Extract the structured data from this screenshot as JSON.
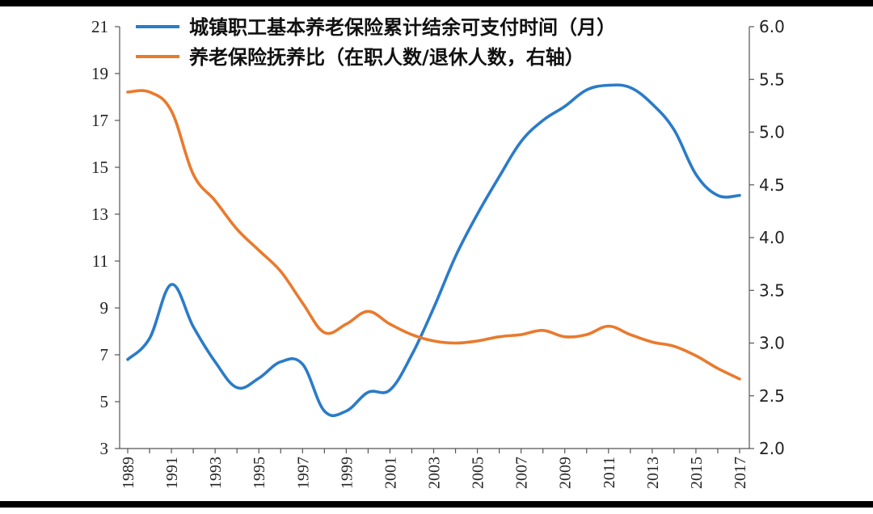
{
  "chart_data": {
    "type": "line",
    "x": [
      1989,
      1990,
      1991,
      1992,
      1993,
      1994,
      1995,
      1996,
      1997,
      1998,
      1999,
      2000,
      2001,
      2002,
      2003,
      2004,
      2005,
      2006,
      2007,
      2008,
      2009,
      2010,
      2011,
      2012,
      2013,
      2014,
      2015,
      2016,
      2017
    ],
    "x_tick_labels": [
      "1989",
      "1991",
      "1993",
      "1995",
      "1997",
      "1999",
      "2001",
      "2003",
      "2005",
      "2007",
      "2009",
      "2011",
      "2013",
      "2015",
      "2017"
    ],
    "y_left_ticks": [
      "3",
      "5",
      "7",
      "9",
      "11",
      "13",
      "15",
      "17",
      "19",
      "21"
    ],
    "y_right_ticks": [
      "2.0",
      "2.5",
      "3.0",
      "3.5",
      "4.0",
      "4.5",
      "5.0",
      "5.5",
      "6.0"
    ],
    "ylim_left": [
      3,
      21
    ],
    "ylim_right": [
      2.0,
      6.0
    ],
    "legend_position": "top-right",
    "series": [
      {
        "name": "城镇职工基本养老保险累计结余可支付时间（月）",
        "axis": "left",
        "color": "#2b7bc8",
        "values": [
          6.8,
          7.7,
          10.0,
          8.2,
          6.7,
          5.6,
          6.0,
          6.7,
          6.6,
          4.6,
          4.6,
          5.4,
          5.5,
          7.0,
          9.0,
          11.2,
          13.0,
          14.6,
          16.1,
          17.0,
          17.6,
          18.3,
          18.5,
          18.4,
          17.7,
          16.6,
          14.7,
          13.8,
          13.8
        ]
      },
      {
        "name": "养老保险抚养比（在职人数/退休人数，右轴）",
        "axis": "right",
        "color": "#e97a2c",
        "values": [
          5.38,
          5.38,
          5.2,
          4.6,
          4.35,
          4.08,
          3.88,
          3.68,
          3.38,
          3.1,
          3.18,
          3.3,
          3.18,
          3.08,
          3.02,
          3.0,
          3.02,
          3.06,
          3.08,
          3.12,
          3.06,
          3.08,
          3.16,
          3.08,
          3.01,
          2.97,
          2.88,
          2.76,
          2.66
        ]
      }
    ]
  }
}
